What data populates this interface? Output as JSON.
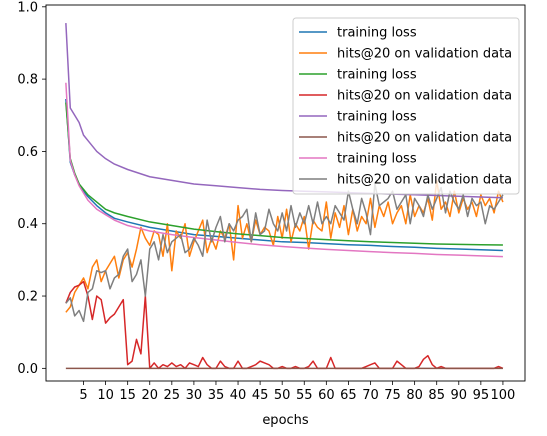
{
  "chart_data": {
    "type": "line",
    "title": "",
    "xlabel": "epochs",
    "ylabel": "",
    "xlim": [
      -3.5,
      105
    ],
    "ylim": [
      -0.035,
      1.005
    ],
    "xticks": [
      5,
      10,
      15,
      20,
      25,
      30,
      35,
      40,
      45,
      50,
      55,
      60,
      65,
      70,
      75,
      80,
      85,
      90,
      95,
      100
    ],
    "yticks": [
      0.0,
      0.2,
      0.4,
      0.6,
      0.8,
      1.0
    ],
    "grid": false,
    "legend_position": "upper right",
    "series": [
      {
        "name": "training loss",
        "color": "#1f77b4",
        "x": [
          1,
          2,
          3,
          4,
          5,
          6,
          8,
          10,
          12,
          15,
          20,
          25,
          30,
          35,
          40,
          45,
          50,
          55,
          60,
          65,
          70,
          75,
          80,
          85,
          90,
          95,
          100
        ],
        "values": [
          0.745,
          0.57,
          0.535,
          0.51,
          0.49,
          0.475,
          0.45,
          0.43,
          0.415,
          0.405,
          0.39,
          0.38,
          0.37,
          0.365,
          0.36,
          0.355,
          0.35,
          0.348,
          0.345,
          0.342,
          0.34,
          0.337,
          0.335,
          0.332,
          0.33,
          0.328,
          0.326
        ]
      },
      {
        "name": "hits@20 on validation data",
        "color": "#ff7f0e",
        "x": [
          1,
          2,
          3,
          4,
          5,
          6,
          7,
          8,
          9,
          10,
          11,
          12,
          13,
          14,
          15,
          16,
          17,
          18,
          19,
          20,
          21,
          22,
          23,
          24,
          25,
          26,
          27,
          28,
          29,
          30,
          31,
          32,
          33,
          34,
          35,
          36,
          37,
          38,
          39,
          40,
          41,
          42,
          43,
          44,
          45,
          46,
          47,
          48,
          49,
          50,
          51,
          52,
          53,
          54,
          55,
          56,
          57,
          58,
          59,
          60,
          61,
          62,
          63,
          64,
          65,
          66,
          67,
          68,
          69,
          70,
          71,
          72,
          73,
          74,
          75,
          76,
          77,
          78,
          79,
          80,
          81,
          82,
          83,
          84,
          85,
          86,
          87,
          88,
          89,
          90,
          91,
          92,
          93,
          94,
          95,
          96,
          97,
          98,
          99,
          100
        ],
        "values": [
          0.155,
          0.17,
          0.21,
          0.23,
          0.25,
          0.22,
          0.28,
          0.3,
          0.24,
          0.27,
          0.29,
          0.31,
          0.25,
          0.3,
          0.32,
          0.28,
          0.33,
          0.39,
          0.36,
          0.34,
          0.38,
          0.37,
          0.31,
          0.4,
          0.27,
          0.38,
          0.36,
          0.4,
          0.31,
          0.35,
          0.38,
          0.41,
          0.32,
          0.36,
          0.33,
          0.38,
          0.36,
          0.4,
          0.3,
          0.45,
          0.36,
          0.4,
          0.35,
          0.41,
          0.37,
          0.39,
          0.38,
          0.34,
          0.42,
          0.36,
          0.44,
          0.35,
          0.4,
          0.38,
          0.42,
          0.33,
          0.41,
          0.39,
          0.38,
          0.46,
          0.36,
          0.43,
          0.39,
          0.45,
          0.37,
          0.44,
          0.38,
          0.42,
          0.4,
          0.47,
          0.39,
          0.45,
          0.42,
          0.46,
          0.4,
          0.43,
          0.45,
          0.4,
          0.48,
          0.42,
          0.45,
          0.43,
          0.47,
          0.41,
          0.52,
          0.44,
          0.46,
          0.42,
          0.49,
          0.43,
          0.47,
          0.44,
          0.46,
          0.42,
          0.48,
          0.45,
          0.47,
          0.43,
          0.49,
          0.46
        ]
      },
      {
        "name": "training loss",
        "color": "#2ca02c",
        "x": [
          1,
          2,
          3,
          4,
          5,
          6,
          8,
          10,
          12,
          15,
          20,
          25,
          30,
          35,
          40,
          45,
          50,
          55,
          60,
          65,
          70,
          75,
          80,
          85,
          90,
          95,
          100
        ],
        "values": [
          0.735,
          0.58,
          0.54,
          0.51,
          0.495,
          0.48,
          0.46,
          0.44,
          0.43,
          0.42,
          0.405,
          0.395,
          0.385,
          0.378,
          0.372,
          0.367,
          0.362,
          0.359,
          0.356,
          0.353,
          0.35,
          0.348,
          0.346,
          0.344,
          0.343,
          0.342,
          0.341
        ]
      },
      {
        "name": "hits@20 on validation data",
        "color": "#d62728",
        "x": [
          1,
          2,
          3,
          4,
          5,
          6,
          7,
          8,
          9,
          10,
          11,
          12,
          13,
          14,
          15,
          16,
          17,
          18,
          19,
          20,
          21,
          22,
          23,
          24,
          25,
          26,
          27,
          28,
          29,
          30,
          31,
          32,
          33,
          34,
          35,
          36,
          37,
          38,
          39,
          40,
          41,
          42,
          43,
          44,
          45,
          46,
          47,
          48,
          49,
          50,
          51,
          52,
          53,
          54,
          55,
          56,
          57,
          58,
          59,
          60,
          61,
          62,
          63,
          64,
          65,
          66,
          67,
          68,
          69,
          70,
          71,
          72,
          73,
          74,
          75,
          76,
          77,
          78,
          79,
          80,
          81,
          82,
          83,
          84,
          85,
          86,
          87,
          88,
          89,
          90,
          91,
          92,
          93,
          94,
          95,
          96,
          97,
          98,
          99,
          100
        ],
        "values": [
          0.18,
          0.21,
          0.225,
          0.23,
          0.24,
          0.2,
          0.135,
          0.2,
          0.19,
          0.125,
          0.14,
          0.15,
          0.17,
          0.19,
          0.01,
          0.02,
          0.08,
          0.04,
          0.2,
          0.0,
          0.015,
          0.0,
          0.01,
          0.005,
          0.015,
          0.005,
          0.01,
          0.0,
          0.015,
          0.01,
          0.005,
          0.03,
          0.01,
          0.0,
          0.0,
          0.02,
          0.005,
          0.0,
          0.0,
          0.02,
          0.0,
          0.0,
          0.005,
          0.01,
          0.02,
          0.015,
          0.01,
          0.0,
          0.0,
          0.005,
          0.0,
          0.0,
          0.005,
          0.0,
          0.0,
          0.005,
          0.02,
          0.0,
          0.0,
          0.0,
          0.03,
          0.0,
          0.0,
          0.0,
          0.0,
          0.0,
          0.0,
          0.0,
          0.005,
          0.01,
          0.015,
          0.0,
          0.0,
          0.0,
          0.0,
          0.02,
          0.01,
          0.0,
          0.0,
          0.0,
          0.005,
          0.025,
          0.035,
          0.01,
          0.0,
          0.005,
          0.0,
          0.0,
          0.0,
          0.0,
          0.0,
          0.0,
          0.0,
          0.0,
          0.0,
          0.0,
          0.0,
          0.0,
          0.005,
          0.0
        ]
      },
      {
        "name": "training loss",
        "color": "#9467bd",
        "x": [
          1,
          2,
          3,
          4,
          5,
          6,
          8,
          10,
          12,
          15,
          20,
          25,
          30,
          35,
          40,
          45,
          50,
          55,
          60,
          65,
          70,
          75,
          80,
          85,
          90,
          95,
          100
        ],
        "values": [
          0.955,
          0.72,
          0.7,
          0.68,
          0.645,
          0.63,
          0.6,
          0.58,
          0.565,
          0.55,
          0.53,
          0.52,
          0.51,
          0.505,
          0.5,
          0.495,
          0.492,
          0.49,
          0.488,
          0.486,
          0.484,
          0.482,
          0.48,
          0.478,
          0.476,
          0.474,
          0.472
        ]
      },
      {
        "name": "hits@20 on validation data",
        "color": "#8c564b",
        "x": [
          1,
          10,
          20,
          30,
          40,
          50,
          60,
          70,
          80,
          90,
          100
        ],
        "values": [
          0.0,
          0.0,
          0.0,
          0.0,
          0.0,
          0.0,
          0.0,
          0.0,
          0.0,
          0.0,
          0.0
        ]
      },
      {
        "name": "training loss",
        "color": "#e377c2",
        "x": [
          1,
          2,
          3,
          4,
          5,
          6,
          8,
          10,
          12,
          15,
          20,
          25,
          30,
          35,
          40,
          45,
          50,
          55,
          60,
          65,
          70,
          75,
          80,
          85,
          90,
          95,
          100
        ],
        "values": [
          0.79,
          0.575,
          0.535,
          0.505,
          0.485,
          0.465,
          0.44,
          0.425,
          0.41,
          0.395,
          0.38,
          0.37,
          0.362,
          0.355,
          0.348,
          0.342,
          0.337,
          0.333,
          0.329,
          0.326,
          0.323,
          0.32,
          0.318,
          0.315,
          0.313,
          0.311,
          0.309
        ]
      },
      {
        "name": "hits@20 on validation data",
        "color": "#7f7f7f",
        "x": [
          1,
          2,
          3,
          4,
          5,
          6,
          7,
          8,
          9,
          10,
          11,
          12,
          13,
          14,
          15,
          16,
          17,
          18,
          19,
          20,
          21,
          22,
          23,
          24,
          25,
          26,
          27,
          28,
          29,
          30,
          31,
          32,
          33,
          34,
          35,
          36,
          37,
          38,
          39,
          40,
          41,
          42,
          43,
          44,
          45,
          46,
          47,
          48,
          49,
          50,
          51,
          52,
          53,
          54,
          55,
          56,
          57,
          58,
          59,
          60,
          61,
          62,
          63,
          64,
          65,
          66,
          67,
          68,
          69,
          70,
          71,
          72,
          73,
          74,
          75,
          76,
          77,
          78,
          79,
          80,
          81,
          82,
          83,
          84,
          85,
          86,
          87,
          88,
          89,
          90,
          91,
          92,
          93,
          94,
          95,
          96,
          97,
          98,
          99,
          100
        ],
        "values": [
          0.18,
          0.195,
          0.145,
          0.16,
          0.13,
          0.21,
          0.22,
          0.27,
          0.265,
          0.27,
          0.22,
          0.25,
          0.26,
          0.31,
          0.33,
          0.24,
          0.26,
          0.3,
          0.2,
          0.33,
          0.35,
          0.3,
          0.37,
          0.32,
          0.35,
          0.36,
          0.37,
          0.32,
          0.33,
          0.36,
          0.34,
          0.31,
          0.41,
          0.35,
          0.39,
          0.42,
          0.35,
          0.4,
          0.38,
          0.41,
          0.42,
          0.44,
          0.35,
          0.43,
          0.37,
          0.38,
          0.44,
          0.4,
          0.38,
          0.43,
          0.38,
          0.45,
          0.39,
          0.43,
          0.4,
          0.45,
          0.4,
          0.46,
          0.4,
          0.42,
          0.4,
          0.45,
          0.43,
          0.41,
          0.49,
          0.44,
          0.4,
          0.47,
          0.43,
          0.37,
          0.51,
          0.45,
          0.46,
          0.47,
          0.49,
          0.44,
          0.46,
          0.48,
          0.4,
          0.47,
          0.45,
          0.42,
          0.48,
          0.44,
          0.47,
          0.5,
          0.43,
          0.49,
          0.46,
          0.44,
          0.48,
          0.42,
          0.47,
          0.45,
          0.46,
          0.4,
          0.45,
          0.44,
          0.46,
          0.48
        ]
      }
    ]
  }
}
